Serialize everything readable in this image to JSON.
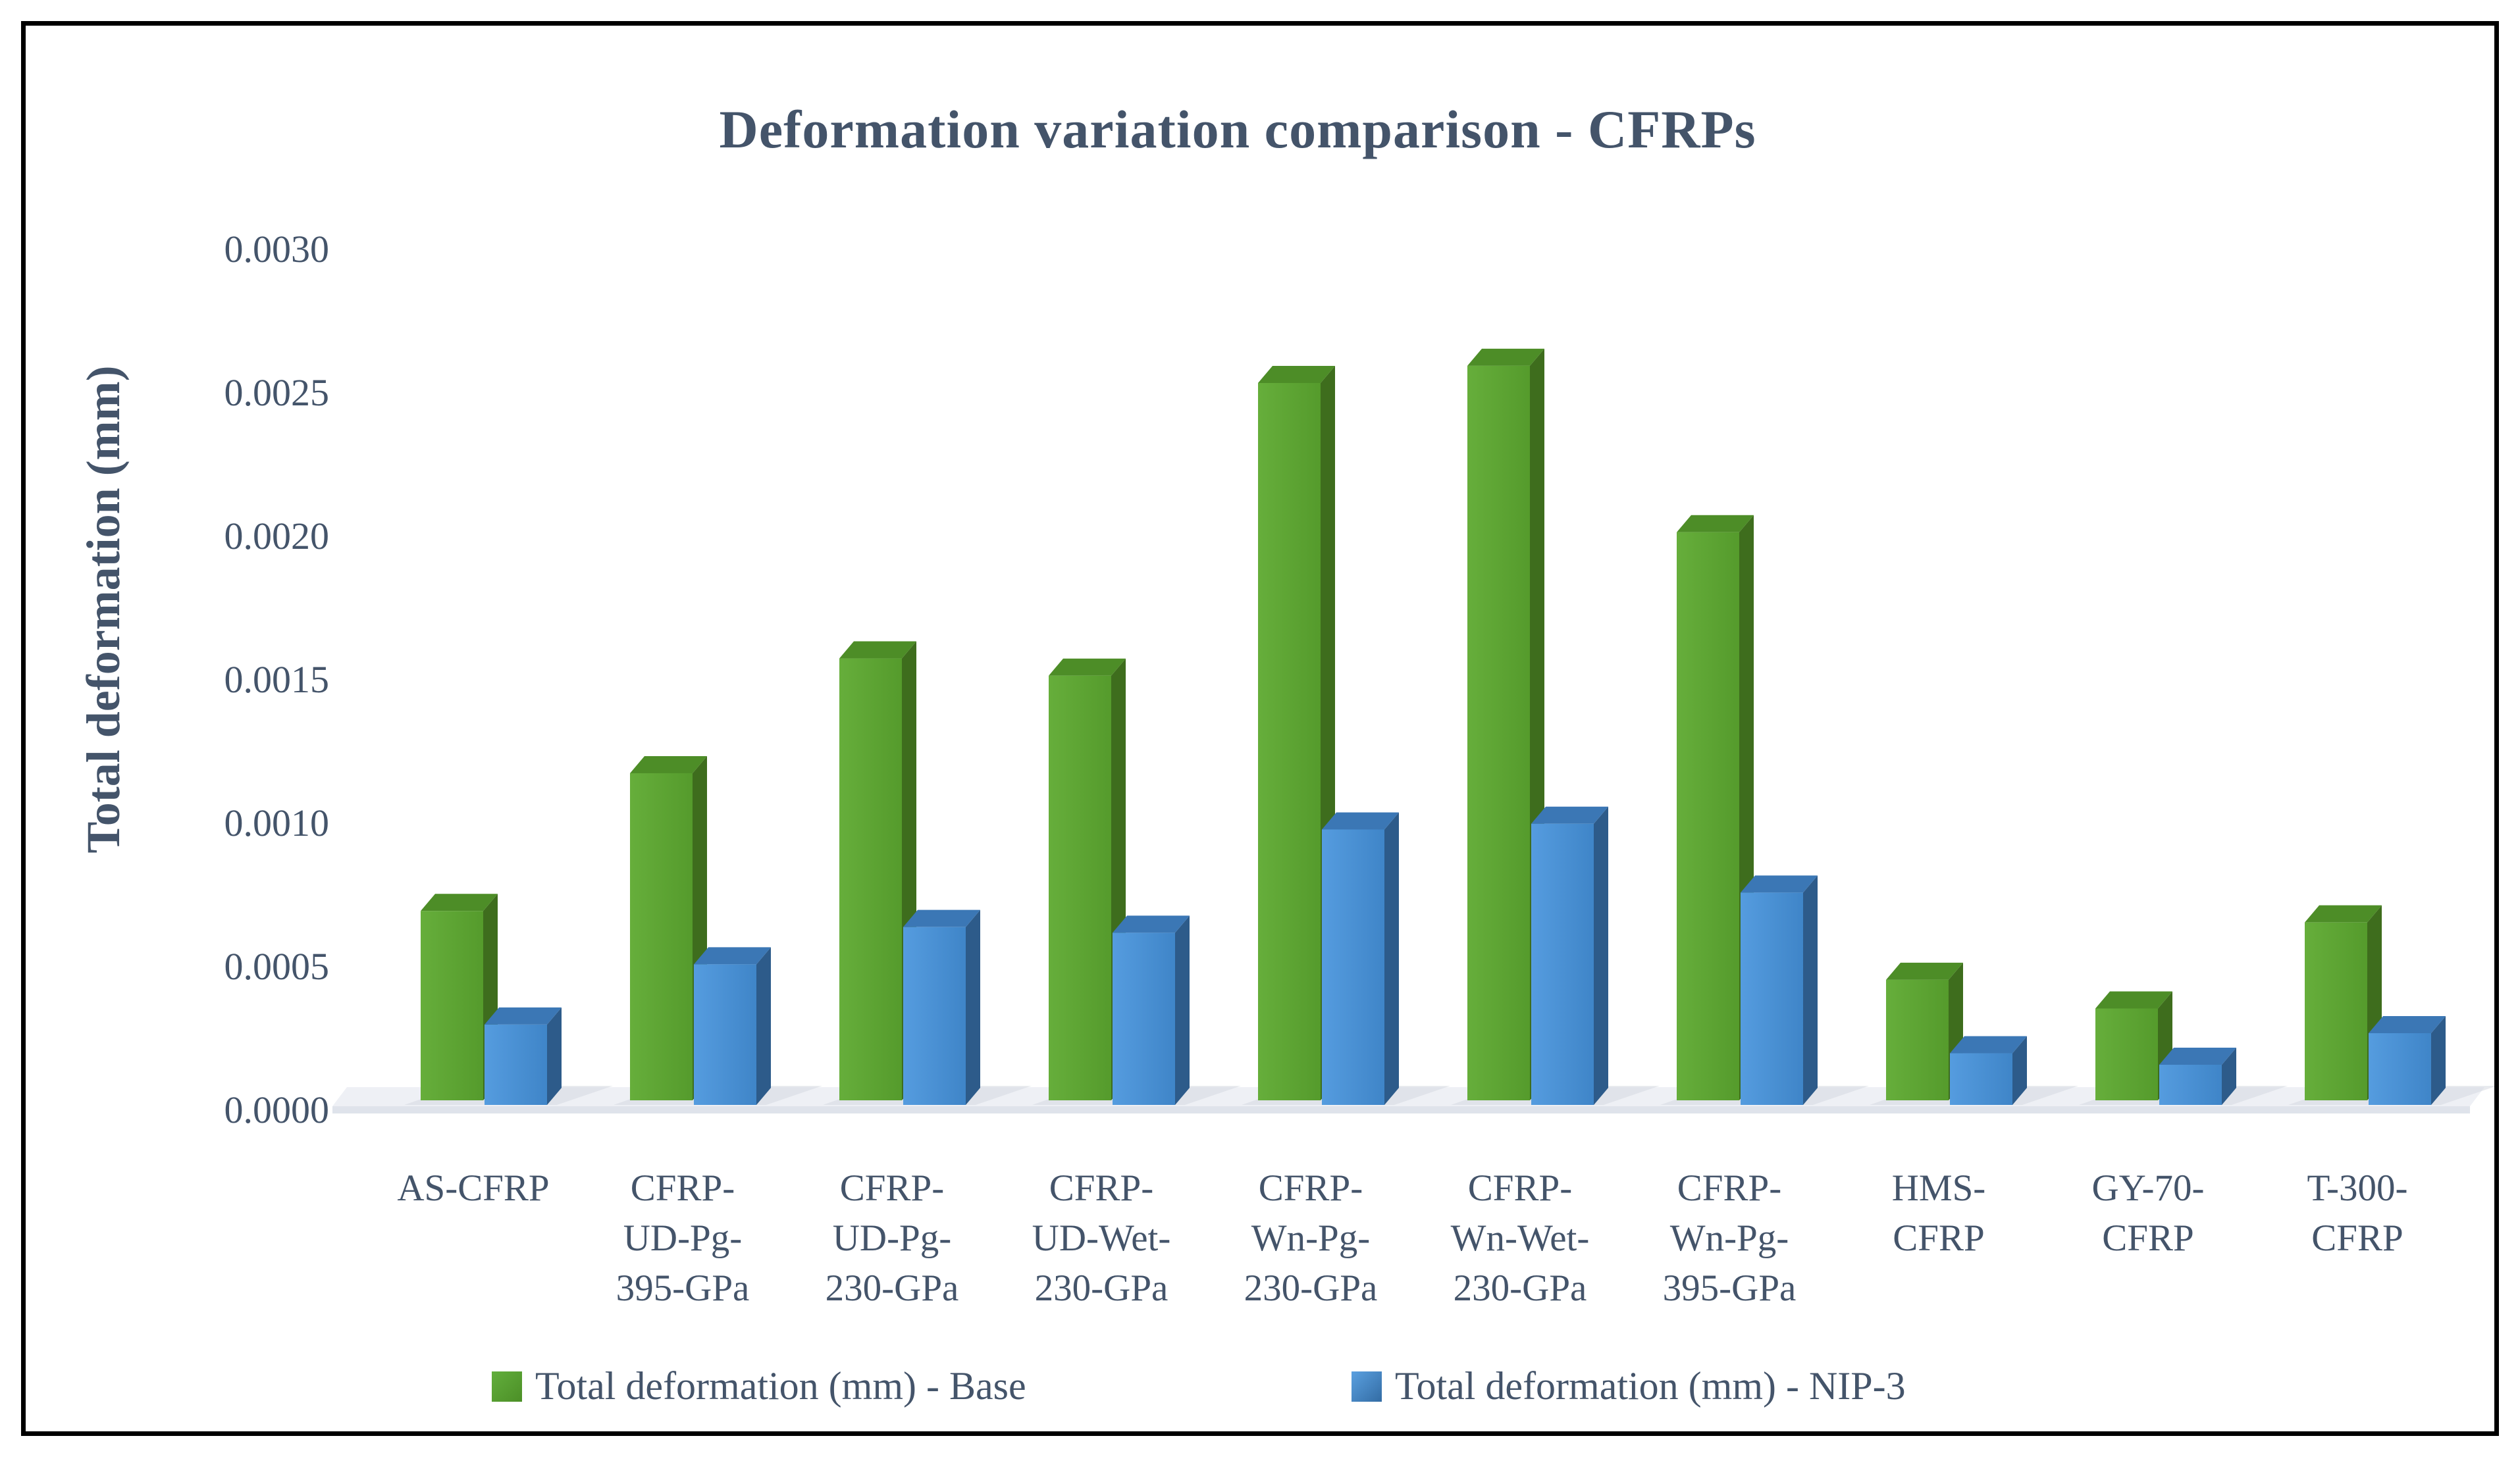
{
  "figure": {
    "title": "Deformation variation comparison - CFRPs"
  },
  "y_axis": {
    "title": "Total deformation (mm)",
    "tick_labels": [
      "0.0000",
      "0.0005",
      "0.0010",
      "0.0015",
      "0.0020",
      "0.0025",
      "0.0030"
    ],
    "min": 0,
    "max": 0.003,
    "step": 0.0005
  },
  "legend": [
    {
      "label": "Total deformation (mm) - Base",
      "color": "#5EA732"
    },
    {
      "label": "Total deformation (mm) - NIP-3",
      "color": "#4A90D5"
    }
  ],
  "colors": {
    "text": "#44546A",
    "green_front_light": "#66AE3B",
    "green_front_dark": "#559B2C",
    "green_side": "#3E6D1D",
    "green_top": "#4D8D27",
    "blue_front_light": "#559CDF",
    "blue_front_dark": "#3F85C8",
    "blue_side": "#2D5B8A",
    "blue_top": "#3B77B5",
    "floor_top": "#EEF0F5",
    "floor_front": "#DFE3EB",
    "shadow": "#D5D9E0",
    "swatch_green_light": "#62AE3C",
    "swatch_green_dark": "#4C8F27",
    "swatch_blue_light": "#5AA0E0",
    "swatch_blue_dark": "#336CA4"
  },
  "chart_data": {
    "type": "bar",
    "style": "3d-clustered",
    "title": "Deformation variation comparison - CFRPs",
    "xlabel": "",
    "ylabel": "Total deformation (mm)",
    "ylim": [
      0,
      0.003
    ],
    "y_tick_values": [
      0.0,
      0.0005,
      0.001,
      0.0015,
      0.002,
      0.0025,
      0.003
    ],
    "grid": false,
    "legend_position": "bottom",
    "categories": [
      "AS-CFRP",
      "CFRP-UD-Pg-395-GPa",
      "CFRP-UD-Pg-230-GPa",
      "CFRP-UD-Wet-230-GPa",
      "CFRP-Wn-Pg-230-GPa",
      "CFRP-Wn-Wet-230-GPa",
      "CFRP-Wn-Pg-395-GPa",
      "HMS-CFRP",
      "GY-70-CFRP",
      "T-300-CFRP"
    ],
    "category_labels": [
      "AS-CFRP",
      "CFRP-\nUD-Pg-\n395-GPa",
      "CFRP-\nUD-Pg-\n230-GPa",
      "CFRP-\nUD-Wet-\n230-GPa",
      "CFRP-\nWn-Pg-\n230-GPa",
      "CFRP-\nWn-Wet-\n230-GPa",
      "CFRP-\nWn-Pg-\n395-GPa",
      "HMS-\nCFRP",
      "GY-70-\nCFRP",
      "T-300-\nCFRP"
    ],
    "series": [
      {
        "name": "Total deformation (mm) - Base",
        "color": "#5EA732",
        "values": [
          0.00066,
          0.00114,
          0.00154,
          0.00148,
          0.0025,
          0.00256,
          0.00198,
          0.00042,
          0.00032,
          0.00062
        ]
      },
      {
        "name": "Total deformation (mm) - NIP-3",
        "color": "#4A90D5",
        "values": [
          0.00028,
          0.00049,
          0.00062,
          0.0006,
          0.00096,
          0.00098,
          0.00074,
          0.00018,
          0.00014,
          0.00025
        ]
      }
    ]
  }
}
